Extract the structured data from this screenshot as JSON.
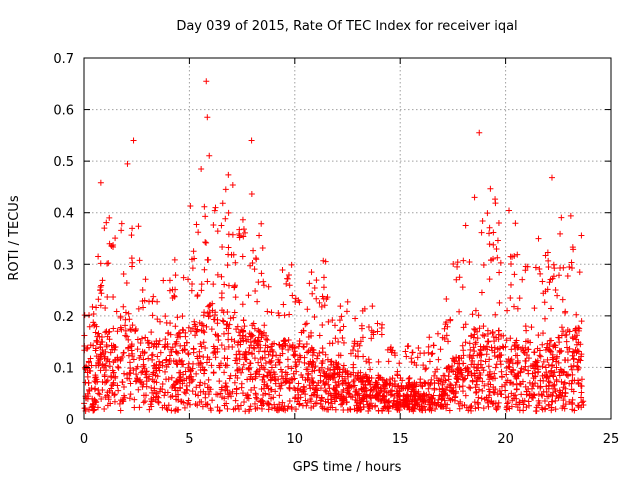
{
  "chart_data": {
    "type": "scatter",
    "title": "Day 039 of 2015, Rate Of TEC Index for receiver iqal",
    "xlabel": "GPS time / hours",
    "ylabel": "ROTI / TECUs",
    "xlim": [
      0,
      25
    ],
    "ylim": [
      0,
      0.7
    ],
    "x_ticks": [
      0,
      5,
      10,
      15,
      20,
      25
    ],
    "y_ticks": [
      0,
      0.1,
      0.2,
      0.3,
      0.4,
      0.5,
      0.6,
      0.7
    ],
    "x_tick_labels": [
      "0",
      "5",
      "10",
      "15",
      "20",
      "25"
    ],
    "y_tick_labels": [
      "0",
      "0.1",
      "0.2",
      "0.3",
      "0.4",
      "0.5",
      "0.6",
      "0.7"
    ],
    "grid": true,
    "marker": "plus",
    "color": "#ff0000",
    "series": [
      {
        "name": "ROTI",
        "x_range": [
          0,
          23.7
        ],
        "envelope": {
          "hours": [
            0,
            1,
            2,
            3,
            4,
            5,
            6,
            7,
            8,
            9,
            10,
            11,
            12,
            13,
            14,
            15,
            16,
            17,
            18,
            19,
            20,
            21,
            22,
            23,
            23.7
          ],
          "median": [
            0.09,
            0.11,
            0.14,
            0.1,
            0.1,
            0.12,
            0.15,
            0.14,
            0.12,
            0.1,
            0.1,
            0.09,
            0.07,
            0.05,
            0.05,
            0.04,
            0.04,
            0.05,
            0.1,
            0.12,
            0.11,
            0.09,
            0.1,
            0.11,
            0.12
          ],
          "upper": [
            0.2,
            0.3,
            0.42,
            0.25,
            0.22,
            0.33,
            0.45,
            0.38,
            0.35,
            0.28,
            0.25,
            0.3,
            0.2,
            0.18,
            0.2,
            0.15,
            0.14,
            0.16,
            0.33,
            0.4,
            0.33,
            0.3,
            0.3,
            0.32,
            0.35
          ]
        },
        "notable_points": [
          {
            "x": 5.8,
            "y": 0.655
          },
          {
            "x": 5.85,
            "y": 0.585
          },
          {
            "x": 2.35,
            "y": 0.54
          },
          {
            "x": 7.95,
            "y": 0.54
          },
          {
            "x": 18.75,
            "y": 0.555
          },
          {
            "x": 22.2,
            "y": 0.468
          },
          {
            "x": 0.8,
            "y": 0.458
          }
        ]
      }
    ]
  }
}
